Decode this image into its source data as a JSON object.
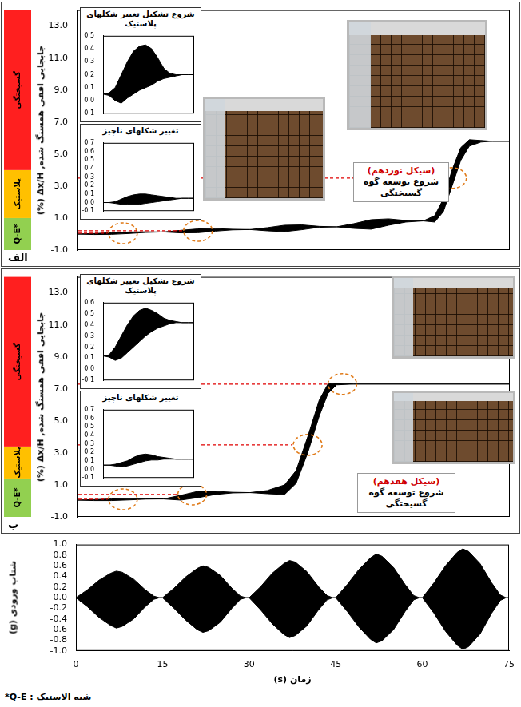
{
  "chart_data": [
    {
      "type": "band",
      "panel_label": "الف",
      "y_label": "جابجایی افقی همسنگ شده, Δx/H (%)",
      "x": [
        0,
        3,
        6,
        9,
        12,
        15,
        18,
        21,
        24,
        27,
        30,
        33,
        36,
        39,
        42,
        45,
        48,
        51,
        54,
        57,
        60,
        62,
        63.5,
        65,
        66.5,
        68,
        70,
        72,
        75
      ],
      "series": [
        {
          "color": "#000000",
          "values": [
            0,
            0.03,
            0.08,
            0.13,
            0.14,
            0.13,
            0.23,
            0.32,
            0.34,
            0.3,
            0.28,
            0.4,
            0.55,
            0.57,
            0.48,
            0.45,
            0.65,
            0.9,
            0.95,
            0.85,
            0.82,
            1.15,
            2.2,
            4,
            5.4,
            5.9,
            5.85,
            5.8,
            5.8
          ]
        },
        {
          "color": "#000000",
          "values": [
            0,
            -0.03,
            -0.02,
            0.03,
            0.1,
            0.13,
            0.07,
            0.08,
            0.18,
            0.26,
            0.28,
            0.2,
            0.15,
            0.27,
            0.42,
            0.45,
            0.35,
            0.3,
            0.55,
            0.75,
            0.82,
            0.75,
            1.4,
            3,
            4.6,
            5.5,
            5.75,
            5.8,
            5.8
          ]
        }
      ],
      "xlim": [
        0,
        75
      ],
      "ylim": [
        -1,
        14
      ],
      "yticks": [
        {
          "value": -1,
          "label": "-1.0"
        },
        {
          "value": 1,
          "label": "1.0"
        },
        {
          "value": 3,
          "label": "3.0"
        },
        {
          "value": 5,
          "label": "5.0"
        },
        {
          "value": 7,
          "label": "7.0"
        },
        {
          "value": 9,
          "label": "9.0"
        },
        {
          "value": 11,
          "label": "11.0"
        },
        {
          "value": 13,
          "label": "13.0"
        }
      ],
      "tick_labels": "y",
      "grid": false,
      "zones": [
        {
          "label": "Q-E*",
          "from": -1,
          "to": 1,
          "color": "#92d050"
        },
        {
          "label": "پلاستیک",
          "from": 1,
          "to": 4,
          "color": "#ffc000"
        },
        {
          "label": "گسیختگی",
          "from": 4,
          "to": 14,
          "color": "#ff1f1f"
        }
      ],
      "highlights": [
        {
          "x": 8,
          "y": 0.05
        },
        {
          "x": 21,
          "y": 0.2
        },
        {
          "x": 65,
          "y": 3.5
        }
      ],
      "annotation": {
        "cycle": "(سیکل نوزدهم)",
        "text": "شروع توسعه گوه گسیختگی"
      },
      "insets": [
        {
          "type": "band",
          "title": "شروع تشکیل تغییر شکلهای پلاستیک",
          "categories": [
            null,
            null,
            null,
            null,
            null,
            null,
            null,
            null,
            null,
            null,
            null,
            null,
            null,
            null,
            null,
            null
          ],
          "series": [
            {
              "color": "#000000",
              "values": [
                0.05,
                0.06,
                0.1,
                0.2,
                0.3,
                0.38,
                0.42,
                0.43,
                0.4,
                0.33,
                0.25,
                0.21,
                0.2,
                0.2,
                0.2,
                0.2
              ]
            },
            {
              "color": "#000000",
              "values": [
                0.05,
                0.04,
                0,
                -0.02,
                0.02,
                0.05,
                0.08,
                0.1,
                0.12,
                0.15,
                0.17,
                0.18,
                0.19,
                0.2,
                0.2,
                0.2
              ]
            }
          ],
          "ylim": [
            -0.1,
            0.5
          ],
          "yticks": [
            -0.1,
            {
              "value": 0,
              "label": "0.0"
            },
            0.1,
            0.2,
            0.3,
            0.4,
            0.5
          ],
          "tick_labels": "y",
          "grid": false
        },
        {
          "type": "band",
          "title": "تغییر شکلهای ناچیز",
          "categories": [
            null,
            null,
            null,
            null,
            null,
            null,
            null,
            null,
            null,
            null,
            null,
            null,
            null,
            null,
            null,
            null
          ],
          "series": [
            {
              "color": "#000000",
              "values": [
                0,
                0,
                0.01,
                0.04,
                0.07,
                0.09,
                0.1,
                0.1,
                0.09,
                0.08,
                0.07,
                0.06,
                0.05,
                0.05,
                0.05,
                0.05
              ]
            },
            {
              "color": "#000000",
              "values": [
                0,
                0,
                -0.01,
                -0.02,
                -0.02,
                -0.02,
                -0.02,
                -0.01,
                0,
                0.01,
                0.02,
                0.03,
                0.04,
                0.05,
                0.05,
                0.05
              ]
            }
          ],
          "ylim": [
            -0.1,
            0.7
          ],
          "yticks": [
            -0.1,
            {
              "value": 0,
              "label": "0.0"
            },
            0.1,
            0.2,
            0.3,
            0.4,
            0.5,
            0.6,
            0.7
          ],
          "tick_labels": "y",
          "grid": false
        }
      ]
    },
    {
      "type": "band",
      "panel_label": "ب",
      "y_label": "جابجایی افقی همسنگ شده, Δx/H (%)",
      "x": [
        0,
        3,
        6,
        9,
        12,
        15,
        18,
        21,
        24,
        27,
        30,
        33,
        36,
        38,
        40,
        42,
        43.5,
        45,
        48,
        75
      ],
      "series": [
        {
          "color": "#000000",
          "values": [
            0.05,
            0.08,
            0.12,
            0.14,
            0.13,
            0.12,
            0.35,
            0.6,
            0.6,
            0.54,
            0.52,
            0.65,
            1,
            1.9,
            4,
            6.3,
            7.3,
            7.35,
            7.3,
            7.3
          ]
        },
        {
          "color": "#000000",
          "values": [
            0.05,
            0.02,
            0.02,
            0.06,
            0.11,
            0.12,
            0.05,
            0.2,
            0.4,
            0.5,
            0.52,
            0.45,
            0.4,
            1.1,
            3,
            5.3,
            6.7,
            7.25,
            7.3,
            7.3
          ]
        }
      ],
      "xlim": [
        0,
        75
      ],
      "ylim": [
        -1,
        14
      ],
      "yticks": [
        {
          "value": -1,
          "label": "-1.0"
        },
        {
          "value": 1,
          "label": "1.0"
        },
        {
          "value": 3,
          "label": "3.0"
        },
        {
          "value": 5,
          "label": "5.0"
        },
        {
          "value": 7,
          "label": "7.0"
        },
        {
          "value": 9,
          "label": "9.0"
        },
        {
          "value": 11,
          "label": "11.0"
        },
        {
          "value": 13,
          "label": "13.0"
        }
      ],
      "tick_labels": "y",
      "grid": false,
      "zones": [
        {
          "label": "Q-E*",
          "from": -1,
          "to": 1.4,
          "color": "#92d050"
        },
        {
          "label": "پلاستیک",
          "from": 1.4,
          "to": 3.4,
          "color": "#ffc000"
        },
        {
          "label": "گسیختگی",
          "from": 3.4,
          "to": 14,
          "color": "#ff1f1f"
        }
      ],
      "highlights": [
        {
          "x": 8,
          "y": 0.1
        },
        {
          "x": 20,
          "y": 0.4
        },
        {
          "x": 40,
          "y": 3.5
        },
        {
          "x": 46,
          "y": 7.3
        }
      ],
      "annotation": {
        "cycle": "(سیکل هفدهم)",
        "text": "شروع توسعه گوه گسیختگی"
      },
      "insets": [
        {
          "type": "band",
          "title": "شروع تشکیل تغییر شکلهای پلاستیک",
          "categories": [
            null,
            null,
            null,
            null,
            null,
            null,
            null,
            null,
            null,
            null,
            null,
            null,
            null,
            null,
            null,
            null
          ],
          "series": [
            {
              "color": "#000000",
              "values": [
                0.12,
                0.13,
                0.2,
                0.3,
                0.4,
                0.48,
                0.53,
                0.55,
                0.53,
                0.5,
                0.46,
                0.44,
                0.43,
                0.42,
                0.42,
                0.42
              ]
            },
            {
              "color": "#000000",
              "values": [
                0.12,
                0.11,
                0.08,
                0.1,
                0.15,
                0.2,
                0.25,
                0.3,
                0.34,
                0.37,
                0.39,
                0.41,
                0.42,
                0.42,
                0.42,
                0.42
              ]
            }
          ],
          "ylim": [
            -0.1,
            0.6
          ],
          "yticks": [
            -0.1,
            {
              "value": 0,
              "label": "0.0"
            },
            0.1,
            0.2,
            0.3,
            0.4,
            0.5,
            0.6
          ],
          "tick_labels": "y",
          "grid": false
        },
        {
          "type": "band",
          "title": "تغییر شکلهای ناچیز",
          "categories": [
            null,
            null,
            null,
            null,
            null,
            null,
            null,
            null,
            null,
            null,
            null,
            null,
            null,
            null,
            null,
            null
          ],
          "series": [
            {
              "color": "#000000",
              "values": [
                0.05,
                0.05,
                0.06,
                0.08,
                0.1,
                0.14,
                0.17,
                0.18,
                0.17,
                0.15,
                0.14,
                0.13,
                0.12,
                0.12,
                0.12,
                0.12
              ]
            },
            {
              "color": "#000000",
              "values": [
                0.05,
                0.05,
                0.04,
                0.03,
                0.04,
                0.06,
                0.08,
                0.1,
                0.11,
                0.11,
                0.12,
                0.12,
                0.12,
                0.12,
                0.12,
                0.12
              ]
            }
          ],
          "ylim": [
            -0.1,
            0.7
          ],
          "yticks": [
            -0.1,
            {
              "value": 0,
              "label": "0.0"
            },
            0.1,
            0.2,
            0.3,
            0.4,
            0.5,
            0.6,
            0.7
          ],
          "tick_labels": "y",
          "grid": false
        }
      ]
    },
    {
      "type": "band",
      "x_label": "زمان (s)",
      "y_label": "شتاب ورودی (g)",
      "x": [
        0,
        2,
        4,
        6,
        7,
        8,
        10,
        12,
        13.5,
        14.5,
        15,
        17,
        19,
        21,
        22,
        23,
        25,
        27,
        28.5,
        29.5,
        30,
        32,
        34,
        36,
        37,
        38,
        40,
        42,
        43.5,
        44.5,
        45,
        47,
        49,
        51,
        52,
        53,
        55,
        57,
        58.5,
        59.5,
        60,
        62,
        64,
        66,
        67,
        68,
        70,
        72,
        73.5,
        74.5,
        75
      ],
      "series": [
        {
          "color": "#000000",
          "values": [
            0,
            0.15,
            0.33,
            0.46,
            0.5,
            0.48,
            0.35,
            0.15,
            0.03,
            0,
            0,
            0.18,
            0.39,
            0.55,
            0.6,
            0.57,
            0.42,
            0.18,
            0.03,
            0,
            0,
            0.21,
            0.46,
            0.64,
            0.7,
            0.67,
            0.49,
            0.21,
            0.04,
            0,
            0,
            0.25,
            0.53,
            0.75,
            0.82,
            0.78,
            0.57,
            0.25,
            0.04,
            0,
            0,
            0.28,
            0.6,
            0.85,
            0.92,
            0.87,
            0.64,
            0.28,
            0.05,
            0,
            0
          ]
        },
        {
          "color": "#000000",
          "values": [
            0,
            -0.17,
            -0.37,
            -0.52,
            -0.57,
            -0.54,
            -0.4,
            -0.17,
            -0.03,
            0,
            0,
            -0.2,
            -0.42,
            -0.6,
            -0.65,
            -0.62,
            -0.46,
            -0.2,
            -0.03,
            0,
            0,
            -0.23,
            -0.49,
            -0.69,
            -0.75,
            -0.71,
            -0.53,
            -0.23,
            -0.04,
            0,
            0,
            -0.26,
            -0.55,
            -0.78,
            -0.85,
            -0.81,
            -0.6,
            -0.26,
            -0.04,
            0,
            0,
            -0.29,
            -0.63,
            -0.89,
            -0.97,
            -0.92,
            -0.68,
            -0.29,
            -0.05,
            0,
            0
          ]
        }
      ],
      "xlim": [
        0,
        75
      ],
      "ylim": [
        -1,
        1
      ],
      "xticks": [
        0,
        15,
        30,
        45,
        60,
        75
      ],
      "yticks": [
        {
          "value": -1,
          "label": "-1.0"
        },
        -0.8,
        -0.6,
        -0.4,
        -0.2,
        {
          "value": 0,
          "label": "0.0"
        },
        0.2,
        0.4,
        0.6,
        0.8,
        {
          "value": 1,
          "label": "1.0"
        }
      ],
      "grid": false
    }
  ],
  "footnote": "شبه الاستیک : Q-E*"
}
